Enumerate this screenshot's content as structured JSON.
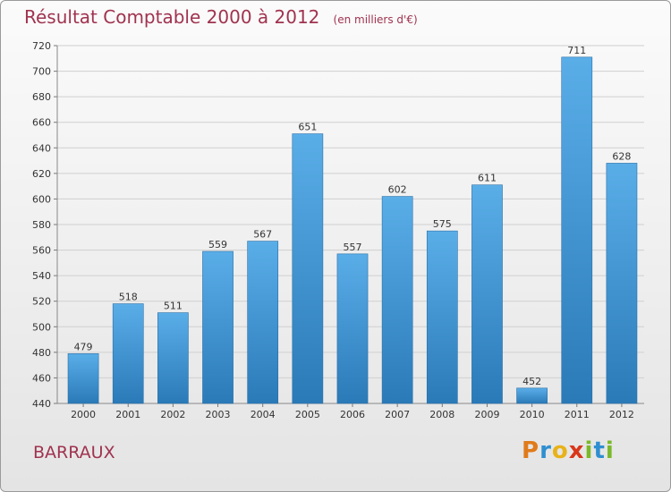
{
  "title": "Résultat Comptable 2000 à 2012",
  "subtitle": "(en milliers d'€)",
  "commune": "BARRAUX",
  "logo": {
    "text": "Proxiti",
    "letters": [
      {
        "ch": "P",
        "color": "#e07b1a"
      },
      {
        "ch": "r",
        "color": "#2f8fd0"
      },
      {
        "ch": "o",
        "color": "#e8b21a"
      },
      {
        "ch": "x",
        "color": "#d9361a"
      },
      {
        "ch": "i",
        "color": "#7bb82a"
      },
      {
        "ch": "t",
        "color": "#2f8fd0"
      },
      {
        "ch": "i",
        "color": "#7bb82a"
      }
    ]
  },
  "colors": {
    "title": "#a0334f",
    "bar_top": "#5aaee8",
    "bar_bottom": "#2a7ab8",
    "grid": "#d0d0d0"
  },
  "chart_data": {
    "type": "bar",
    "title": "Résultat Comptable 2000 à 2012",
    "subtitle": "(en milliers d'€)",
    "categories": [
      "2000",
      "2001",
      "2002",
      "2003",
      "2004",
      "2005",
      "2006",
      "2007",
      "2008",
      "2009",
      "2010",
      "2011",
      "2012"
    ],
    "values": [
      479,
      518,
      511,
      559,
      567,
      651,
      557,
      602,
      575,
      611,
      452,
      711,
      628
    ],
    "ylim": [
      440,
      720
    ],
    "yticks": [
      440,
      460,
      480,
      500,
      520,
      540,
      560,
      580,
      600,
      620,
      640,
      660,
      680,
      700,
      720
    ],
    "grid": true,
    "data_labels": true
  }
}
